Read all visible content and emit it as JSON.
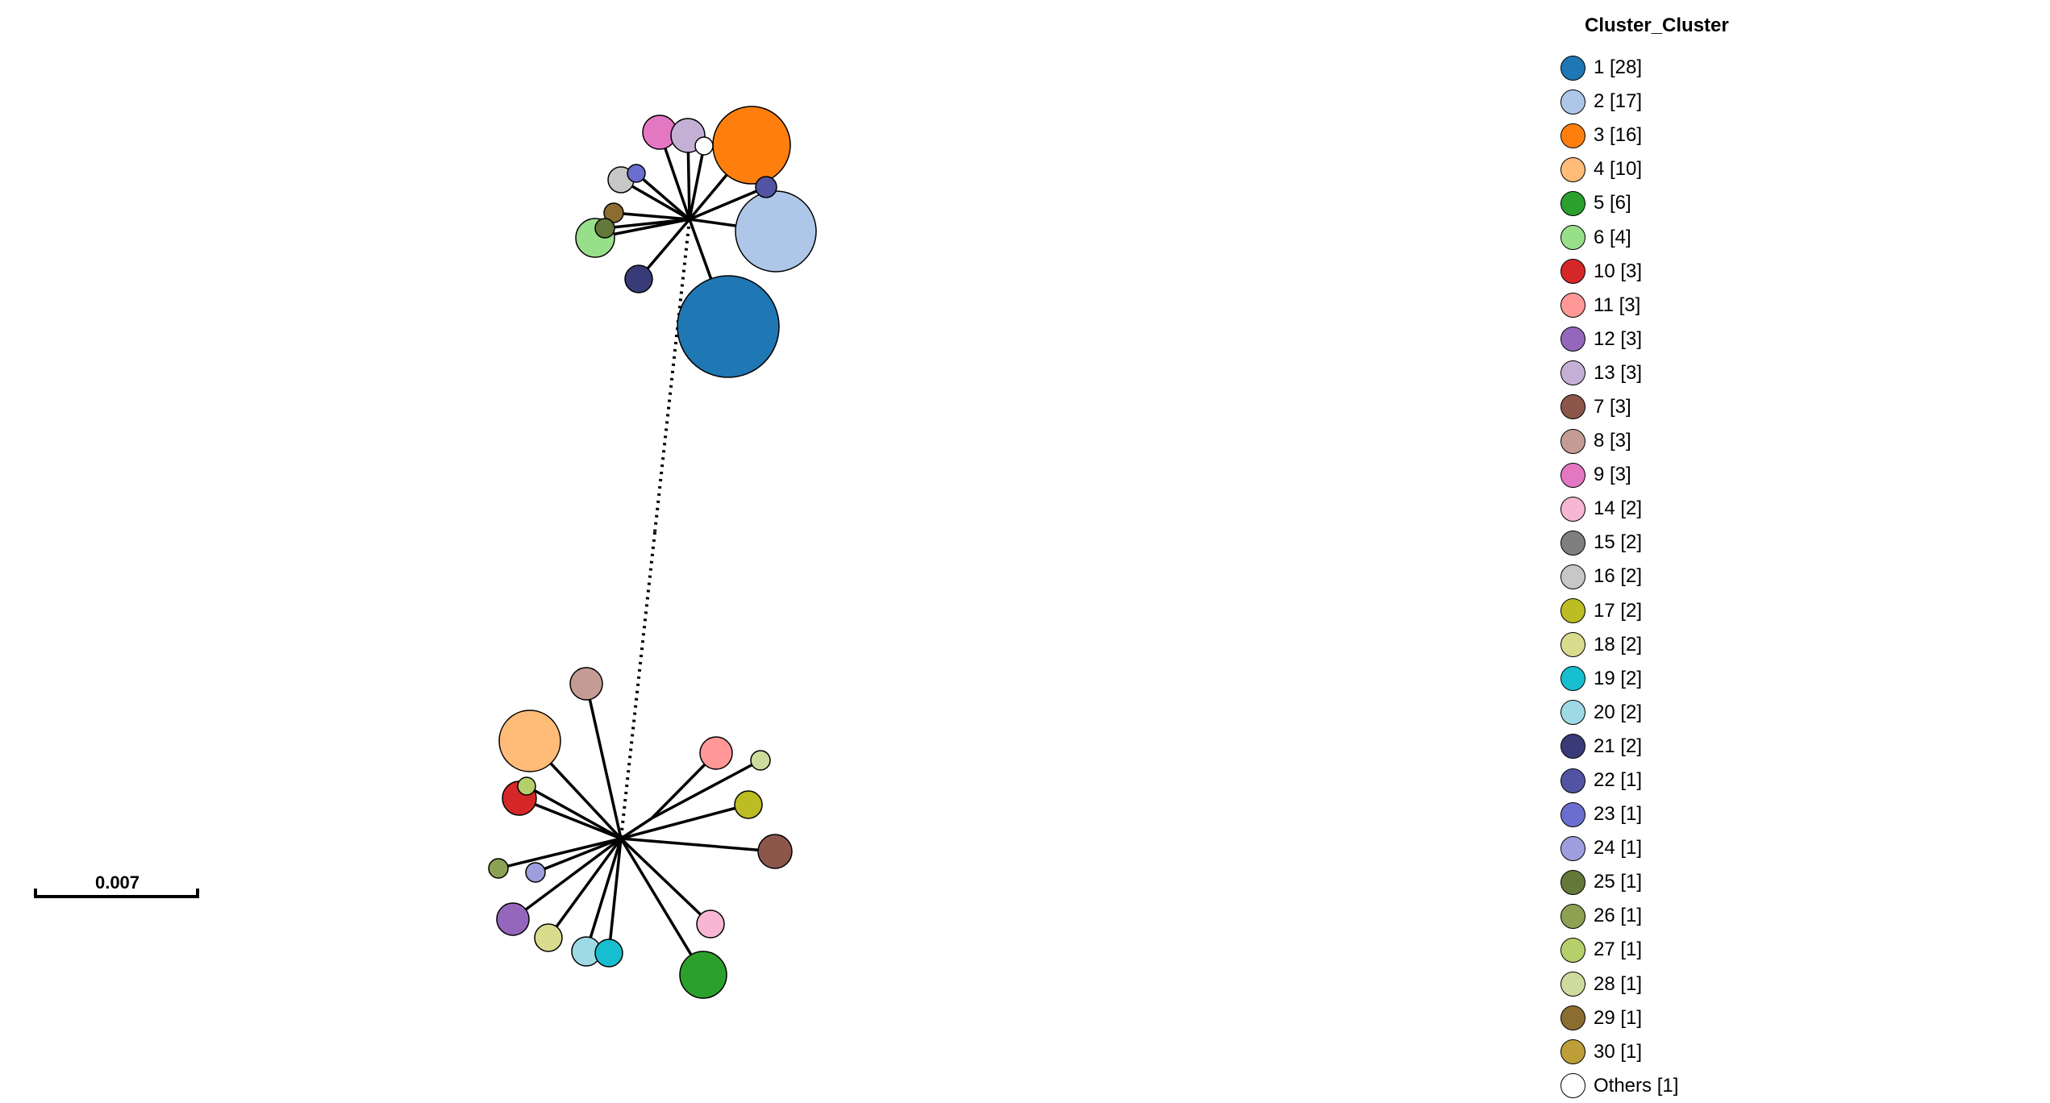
{
  "legend": {
    "title": "Cluster_Cluster",
    "items": [
      {
        "label": "1 [28]",
        "color": "#1f77b4"
      },
      {
        "label": "2 [17]",
        "color": "#aec7e8"
      },
      {
        "label": "3 [16]",
        "color": "#ff7f0e"
      },
      {
        "label": "4 [10]",
        "color": "#ffbb78"
      },
      {
        "label": "5 [6]",
        "color": "#2ca02c"
      },
      {
        "label": "6 [4]",
        "color": "#98df8a"
      },
      {
        "label": "10 [3]",
        "color": "#d62728"
      },
      {
        "label": "11 [3]",
        "color": "#ff9896"
      },
      {
        "label": "12 [3]",
        "color": "#9467bd"
      },
      {
        "label": "13 [3]",
        "color": "#c5b0d5"
      },
      {
        "label": "7 [3]",
        "color": "#8c564b"
      },
      {
        "label": "8 [3]",
        "color": "#c49c94"
      },
      {
        "label": "9 [3]",
        "color": "#e377c2"
      },
      {
        "label": "14 [2]",
        "color": "#f7b6d2"
      },
      {
        "label": "15 [2]",
        "color": "#7f7f7f"
      },
      {
        "label": "16 [2]",
        "color": "#c7c7c7"
      },
      {
        "label": "17 [2]",
        "color": "#bcbd22"
      },
      {
        "label": "18 [2]",
        "color": "#dbdb8d"
      },
      {
        "label": "19 [2]",
        "color": "#17becf"
      },
      {
        "label": "20 [2]",
        "color": "#9edae5"
      },
      {
        "label": "21 [2]",
        "color": "#393b79"
      },
      {
        "label": "22 [1]",
        "color": "#5254a3"
      },
      {
        "label": "23 [1]",
        "color": "#6b6ecf"
      },
      {
        "label": "24 [1]",
        "color": "#9c9ede"
      },
      {
        "label": "25 [1]",
        "color": "#637939"
      },
      {
        "label": "26 [1]",
        "color": "#8ca252"
      },
      {
        "label": "27 [1]",
        "color": "#b5cf6b"
      },
      {
        "label": "28 [1]",
        "color": "#cedb9c"
      },
      {
        "label": "29 [1]",
        "color": "#8c6d31"
      },
      {
        "label": "30 [1]",
        "color": "#bd9e39"
      },
      {
        "label": "Others [1]",
        "color": "#ffffff"
      }
    ]
  },
  "scale": {
    "label": "0.007"
  }
}
